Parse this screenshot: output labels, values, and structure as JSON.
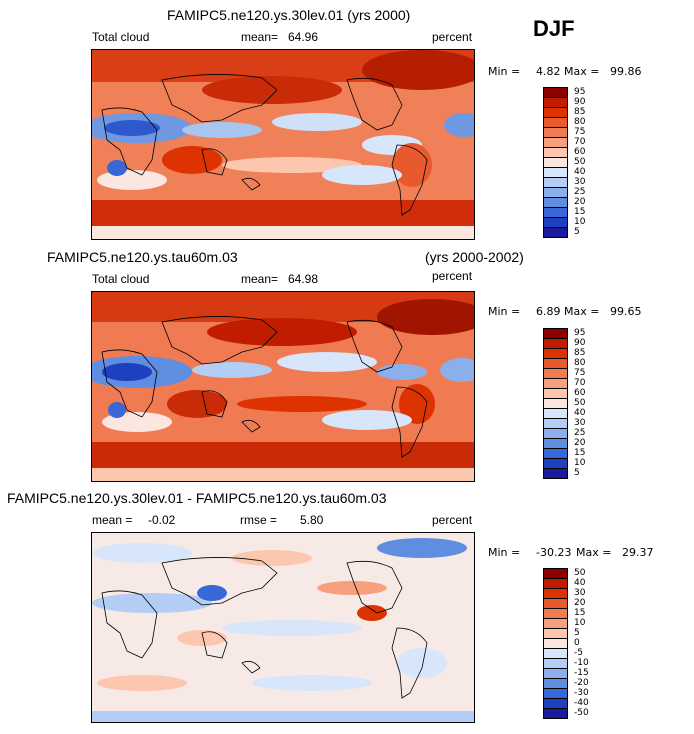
{
  "season": "DJF",
  "chart_data": [
    {
      "type": "heatmap",
      "title": "FAMIPC5.ne120.ys.30lev.01 (yrs 2000)",
      "left_label": "Total cloud",
      "mean_label": "mean=",
      "mean_value": "64.96",
      "units": "percent",
      "min_label": "Min =",
      "min_value": "4.82",
      "max_label": "Max =",
      "max_value": "99.86",
      "colorbar_labels": [
        "95",
        "90",
        "85",
        "80",
        "75",
        "70",
        "60",
        "50",
        "40",
        "30",
        "25",
        "20",
        "15",
        "10",
        "5"
      ],
      "colorbar_colors": [
        "#8c0000",
        "#c11c00",
        "#dd3300",
        "#e85a2e",
        "#f07a52",
        "#f7a07e",
        "#fcc7ae",
        "#fbe7df",
        "#d7e6fa",
        "#b3cdf4",
        "#8aafeb",
        "#5f8de0",
        "#3a67d7",
        "#1e40c0",
        "#1a1a9a"
      ],
      "value_range": [
        0,
        100
      ]
    },
    {
      "type": "heatmap",
      "title": "FAMIPC5.ne120.ys.tau60m.03",
      "title_right": "(yrs 2000-2002)",
      "left_label": "Total cloud",
      "mean_label": "mean=",
      "mean_value": "64.98",
      "units": "percent",
      "min_label": "Min =",
      "min_value": "6.89",
      "max_label": "Max =",
      "max_value": "99.65",
      "colorbar_labels": [
        "95",
        "90",
        "85",
        "80",
        "75",
        "70",
        "60",
        "50",
        "40",
        "30",
        "25",
        "20",
        "15",
        "10",
        "5"
      ],
      "colorbar_colors": [
        "#8c0000",
        "#c11c00",
        "#dd3300",
        "#e85a2e",
        "#f07a52",
        "#f7a07e",
        "#fcc7ae",
        "#fbe7df",
        "#d7e6fa",
        "#b3cdf4",
        "#8aafeb",
        "#5f8de0",
        "#3a67d7",
        "#1e40c0",
        "#1a1a9a"
      ],
      "value_range": [
        0,
        100
      ]
    },
    {
      "type": "heatmap",
      "title": "FAMIPC5.ne120.ys.30lev.01 - FAMIPC5.ne120.ys.tau60m.03",
      "mean_label": "mean =",
      "mean_value": "-0.02",
      "rmse_label": "rmse =",
      "rmse_value": "5.80",
      "units": "percent",
      "min_label": "Min =",
      "min_value": "-30.23",
      "max_label": "Max =",
      "max_value": "29.37",
      "colorbar_labels": [
        "50",
        "40",
        "30",
        "20",
        "15",
        "10",
        "5",
        "0",
        "-5",
        "-10",
        "-15",
        "-20",
        "-30",
        "-40",
        "-50"
      ],
      "colorbar_colors": [
        "#8c0000",
        "#c11c00",
        "#dd3300",
        "#e85a2e",
        "#f07a52",
        "#f7a07e",
        "#fcc7ae",
        "#fbe7df",
        "#d7e6fa",
        "#b3cdf4",
        "#8aafeb",
        "#5f8de0",
        "#3a67d7",
        "#1e40c0",
        "#1a1a9a"
      ],
      "value_range": [
        -50,
        50
      ]
    }
  ]
}
